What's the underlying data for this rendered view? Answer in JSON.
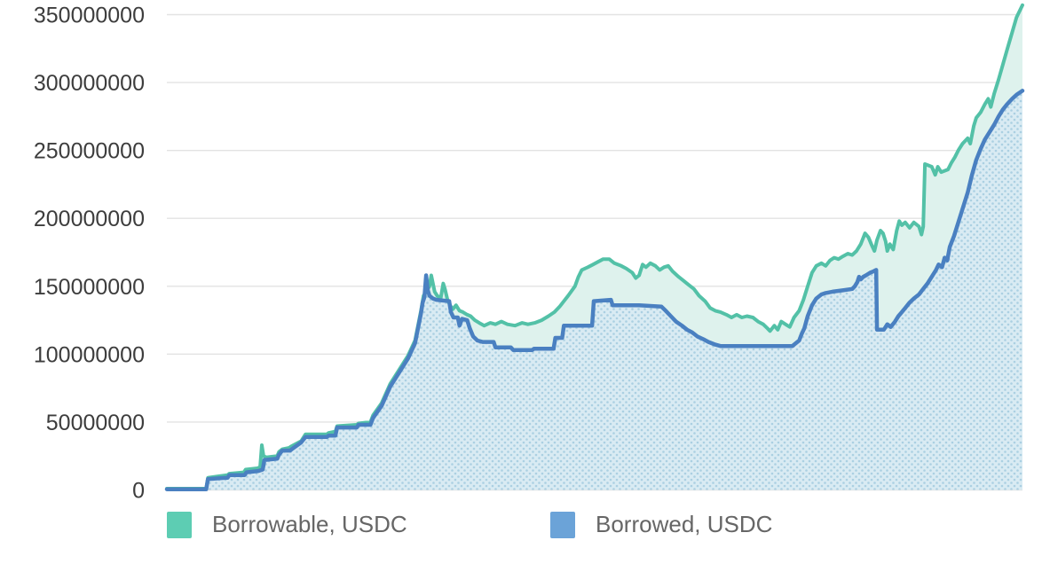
{
  "page": {
    "background_color": "#ffffff"
  },
  "axis": {
    "gridline_color": "#e3e3e3",
    "tick_label_color": "#3d3d3d",
    "tick_label_font_px": 25
  },
  "chart_data": {
    "type": "area",
    "title": "",
    "xlabel": "",
    "ylabel": "",
    "x_tick_labels_visible": false,
    "x_unit": "percent of plot width (time axis, unlabeled in image)",
    "point_value_unit": "millions of USDC",
    "ylim": [
      0,
      358000000
    ],
    "y_ticks": [
      0,
      50000000,
      100000000,
      150000000,
      200000000,
      250000000,
      300000000,
      350000000
    ],
    "grid": true,
    "legend_position": "bottom",
    "series": [
      {
        "name": "Borrowable, USDC",
        "line_color": "#53c1a7",
        "fill_color": "#def2ed",
        "swatch_color": "#5dcdb3",
        "points": [
          [
            0,
            1
          ],
          [
            4.6,
            1
          ],
          [
            4.8,
            9
          ],
          [
            5.9,
            10
          ],
          [
            7.1,
            11
          ],
          [
            7.3,
            12
          ],
          [
            9,
            13
          ],
          [
            9.2,
            15
          ],
          [
            10.6,
            16
          ],
          [
            10.9,
            17
          ],
          [
            11.1,
            33
          ],
          [
            11.3,
            25
          ],
          [
            11.6,
            24
          ],
          [
            12.9,
            25
          ],
          [
            13.1,
            28
          ],
          [
            13.5,
            30
          ],
          [
            14.3,
            31
          ],
          [
            14.5,
            32
          ],
          [
            15.7,
            36
          ],
          [
            16.2,
            41
          ],
          [
            18.7,
            41
          ],
          [
            18.9,
            42
          ],
          [
            19.7,
            43
          ],
          [
            19.9,
            47
          ],
          [
            22.2,
            48
          ],
          [
            22.4,
            49
          ],
          [
            23.8,
            50
          ],
          [
            24.1,
            55
          ],
          [
            25.1,
            64
          ],
          [
            26.1,
            78
          ],
          [
            27.2,
            89
          ],
          [
            28.2,
            99
          ],
          [
            29,
            110
          ],
          [
            29.7,
            132
          ],
          [
            30,
            143
          ],
          [
            30.3,
            146
          ],
          [
            30.7,
            150
          ],
          [
            30.9,
            158
          ],
          [
            31.1,
            152
          ],
          [
            31.3,
            146
          ],
          [
            31.6,
            143
          ],
          [
            32,
            141
          ],
          [
            32.3,
            152
          ],
          [
            32.5,
            148
          ],
          [
            32.8,
            140
          ],
          [
            33.1,
            136
          ],
          [
            33.4,
            133
          ],
          [
            33.8,
            136
          ],
          [
            34.2,
            132
          ],
          [
            34.6,
            131
          ],
          [
            35.1,
            129
          ],
          [
            35.5,
            128
          ],
          [
            36,
            125
          ],
          [
            36.5,
            123
          ],
          [
            37.1,
            121
          ],
          [
            37.8,
            123
          ],
          [
            38.4,
            122
          ],
          [
            39.1,
            124
          ],
          [
            39.8,
            122
          ],
          [
            40.7,
            121
          ],
          [
            41.5,
            123
          ],
          [
            42.2,
            122
          ],
          [
            43,
            123
          ],
          [
            43.8,
            125
          ],
          [
            44.6,
            128
          ],
          [
            45.3,
            131
          ],
          [
            45.9,
            135
          ],
          [
            46.9,
            143
          ],
          [
            47.7,
            150
          ],
          [
            48.1,
            157
          ],
          [
            48.5,
            162
          ],
          [
            49.2,
            164
          ],
          [
            49.8,
            166
          ],
          [
            50.4,
            168
          ],
          [
            51,
            170
          ],
          [
            51.7,
            170
          ],
          [
            52.3,
            167
          ],
          [
            53.1,
            165
          ],
          [
            53.7,
            163
          ],
          [
            54.4,
            160
          ],
          [
            54.8,
            156
          ],
          [
            55.2,
            158
          ],
          [
            55.6,
            166
          ],
          [
            56,
            164
          ],
          [
            56.5,
            167
          ],
          [
            57.1,
            165
          ],
          [
            57.6,
            162
          ],
          [
            58.1,
            164
          ],
          [
            58.6,
            165
          ],
          [
            59.1,
            161
          ],
          [
            59.8,
            157
          ],
          [
            60.4,
            154
          ],
          [
            61,
            151
          ],
          [
            61.6,
            148
          ],
          [
            62.2,
            143
          ],
          [
            62.9,
            139
          ],
          [
            63.5,
            134
          ],
          [
            64.1,
            132
          ],
          [
            64.7,
            131
          ],
          [
            65.4,
            129
          ],
          [
            66,
            127
          ],
          [
            66.6,
            129
          ],
          [
            67.2,
            127
          ],
          [
            67.8,
            128
          ],
          [
            68.5,
            127
          ],
          [
            69.1,
            124
          ],
          [
            69.7,
            122
          ],
          [
            70.2,
            119
          ],
          [
            70.5,
            117
          ],
          [
            71,
            121
          ],
          [
            71.4,
            118
          ],
          [
            71.8,
            124
          ],
          [
            72.3,
            122
          ],
          [
            72.8,
            120
          ],
          [
            73.3,
            127
          ],
          [
            73.9,
            132
          ],
          [
            74.4,
            140
          ],
          [
            74.9,
            150
          ],
          [
            75.4,
            160
          ],
          [
            75.9,
            165
          ],
          [
            76.5,
            167
          ],
          [
            77,
            165
          ],
          [
            77.5,
            169
          ],
          [
            78,
            171
          ],
          [
            78.5,
            170
          ],
          [
            79,
            172
          ],
          [
            79.6,
            174
          ],
          [
            80.1,
            173
          ],
          [
            80.6,
            176
          ],
          [
            81.1,
            181
          ],
          [
            81.6,
            189
          ],
          [
            82,
            186
          ],
          [
            82.4,
            180
          ],
          [
            82.7,
            176
          ],
          [
            83,
            184
          ],
          [
            83.4,
            191
          ],
          [
            83.7,
            189
          ],
          [
            84,
            183
          ],
          [
            84.2,
            176
          ],
          [
            84.5,
            181
          ],
          [
            84.9,
            177
          ],
          [
            85.3,
            191
          ],
          [
            85.6,
            198
          ],
          [
            85.9,
            195
          ],
          [
            86.3,
            197
          ],
          [
            86.8,
            193
          ],
          [
            87.3,
            197
          ],
          [
            87.9,
            194
          ],
          [
            88.2,
            188
          ],
          [
            88.4,
            194
          ],
          [
            88.6,
            240
          ],
          [
            89,
            239
          ],
          [
            89.4,
            238
          ],
          [
            89.8,
            232
          ],
          [
            90.1,
            238
          ],
          [
            90.5,
            234
          ],
          [
            90.9,
            235
          ],
          [
            91.3,
            236
          ],
          [
            91.7,
            241
          ],
          [
            92.1,
            245
          ],
          [
            92.5,
            250
          ],
          [
            93,
            255
          ],
          [
            93.6,
            259
          ],
          [
            93.9,
            255
          ],
          [
            94.3,
            268
          ],
          [
            94.6,
            274
          ],
          [
            95.1,
            278
          ],
          [
            95.6,
            284
          ],
          [
            96,
            288
          ],
          [
            96.3,
            282
          ],
          [
            96.7,
            292
          ],
          [
            97.2,
            302
          ],
          [
            97.7,
            313
          ],
          [
            98.2,
            324
          ],
          [
            98.8,
            337
          ],
          [
            99.3,
            348
          ],
          [
            100,
            357
          ]
        ]
      },
      {
        "name": "Borrowed, USDC",
        "line_color": "#4a80c1",
        "fill_color": "#d9ebf3",
        "fill_dot_color": "#abd0e2",
        "swatch_color": "#6ba3d8",
        "points": [
          [
            0,
            0.5
          ],
          [
            4.6,
            0.5
          ],
          [
            4.8,
            8
          ],
          [
            7.1,
            9
          ],
          [
            7.3,
            11
          ],
          [
            9.1,
            11
          ],
          [
            9.3,
            13
          ],
          [
            10.7,
            14
          ],
          [
            11.2,
            15
          ],
          [
            11.4,
            22
          ],
          [
            12.9,
            23
          ],
          [
            13.1,
            26
          ],
          [
            13.5,
            29
          ],
          [
            14.4,
            29
          ],
          [
            14.6,
            30
          ],
          [
            15.7,
            35
          ],
          [
            16.2,
            39
          ],
          [
            18.7,
            39
          ],
          [
            18.9,
            40
          ],
          [
            19.7,
            40
          ],
          [
            19.9,
            46
          ],
          [
            22.2,
            46
          ],
          [
            22.4,
            48
          ],
          [
            23.8,
            48
          ],
          [
            24.1,
            53
          ],
          [
            25.1,
            62
          ],
          [
            26.1,
            76
          ],
          [
            27.2,
            87
          ],
          [
            28.2,
            97
          ],
          [
            29,
            108
          ],
          [
            29.7,
            130
          ],
          [
            29.9,
            138
          ],
          [
            30.1,
            142
          ],
          [
            30.3,
            158
          ],
          [
            30.5,
            147
          ],
          [
            30.7,
            143
          ],
          [
            31.1,
            141
          ],
          [
            31.5,
            140
          ],
          [
            33,
            139
          ],
          [
            33.2,
            131
          ],
          [
            33.5,
            127
          ],
          [
            34,
            127
          ],
          [
            34.2,
            121
          ],
          [
            34.5,
            126
          ],
          [
            35.1,
            125
          ],
          [
            35.4,
            119
          ],
          [
            35.8,
            113
          ],
          [
            36.3,
            110
          ],
          [
            36.9,
            109
          ],
          [
            38.2,
            109
          ],
          [
            38.4,
            105
          ],
          [
            40.2,
            105
          ],
          [
            40.5,
            103
          ],
          [
            42.7,
            103
          ],
          [
            42.9,
            104
          ],
          [
            45.2,
            104
          ],
          [
            45.4,
            112
          ],
          [
            46.2,
            112
          ],
          [
            46.4,
            121
          ],
          [
            49.7,
            121
          ],
          [
            49.9,
            139
          ],
          [
            51.9,
            140
          ],
          [
            52.1,
            136
          ],
          [
            55.2,
            136
          ],
          [
            57.8,
            135
          ],
          [
            58.3,
            132
          ],
          [
            58.9,
            128
          ],
          [
            59.5,
            124
          ],
          [
            60.2,
            121
          ],
          [
            60.8,
            118
          ],
          [
            61.4,
            116
          ],
          [
            62,
            113
          ],
          [
            62.7,
            111
          ],
          [
            63.3,
            109
          ],
          [
            64.1,
            107
          ],
          [
            64.7,
            106
          ],
          [
            73.1,
            106
          ],
          [
            73.5,
            108
          ],
          [
            73.9,
            110
          ],
          [
            74.2,
            115
          ],
          [
            74.5,
            119
          ],
          [
            74.9,
            128
          ],
          [
            75.4,
            136
          ],
          [
            75.9,
            141
          ],
          [
            76.5,
            144
          ],
          [
            77,
            145
          ],
          [
            77.8,
            146
          ],
          [
            79,
            147
          ],
          [
            80.1,
            148
          ],
          [
            80.4,
            150
          ],
          [
            80.7,
            153
          ],
          [
            80.9,
            157
          ],
          [
            81.1,
            155
          ],
          [
            81.4,
            157
          ],
          [
            81.7,
            158
          ],
          [
            82.2,
            160
          ],
          [
            82.6,
            161
          ],
          [
            82.9,
            162
          ],
          [
            83,
            118
          ],
          [
            83.8,
            118
          ],
          [
            84.2,
            122
          ],
          [
            84.6,
            120
          ],
          [
            85.1,
            124
          ],
          [
            85.5,
            128
          ],
          [
            85.9,
            131
          ],
          [
            86.3,
            134
          ],
          [
            86.8,
            138
          ],
          [
            87.3,
            141
          ],
          [
            87.9,
            144
          ],
          [
            88.4,
            148
          ],
          [
            88.9,
            152
          ],
          [
            89.4,
            157
          ],
          [
            89.9,
            162
          ],
          [
            90.2,
            166
          ],
          [
            90.6,
            164
          ],
          [
            90.9,
            171
          ],
          [
            91.2,
            169
          ],
          [
            91.5,
            179
          ],
          [
            92,
            187
          ],
          [
            92.5,
            197
          ],
          [
            93,
            207
          ],
          [
            93.6,
            219
          ],
          [
            94.1,
            232
          ],
          [
            94.6,
            243
          ],
          [
            95.1,
            251
          ],
          [
            95.6,
            258
          ],
          [
            96.2,
            264
          ],
          [
            96.7,
            269
          ],
          [
            97.2,
            275
          ],
          [
            97.7,
            280
          ],
          [
            98.2,
            284
          ],
          [
            98.8,
            288
          ],
          [
            99.3,
            291
          ],
          [
            100,
            294
          ]
        ]
      }
    ]
  },
  "legend": {
    "items": [
      {
        "label": "Borrowable, USDC"
      },
      {
        "label": "Borrowed, USDC"
      }
    ]
  }
}
